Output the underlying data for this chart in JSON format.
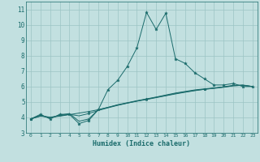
{
  "xlabel": "Humidex (Indice chaleur)",
  "xlim": [
    -0.5,
    23.5
  ],
  "ylim": [
    3.0,
    11.5
  ],
  "yticks": [
    3,
    4,
    5,
    6,
    7,
    8,
    9,
    10,
    11
  ],
  "xticks": [
    0,
    1,
    2,
    3,
    4,
    5,
    6,
    7,
    8,
    9,
    10,
    11,
    12,
    13,
    14,
    15,
    16,
    17,
    18,
    19,
    20,
    21,
    22,
    23
  ],
  "bg_color": "#c2e0e0",
  "grid_color": "#9cc4c4",
  "line_color": "#1a6b6b",
  "line1": [
    3.9,
    4.2,
    3.9,
    4.2,
    4.2,
    3.6,
    3.8,
    4.5,
    5.8,
    6.4,
    7.3,
    8.5,
    10.8,
    9.7,
    10.75,
    7.8,
    7.5,
    6.9,
    6.5,
    6.1,
    6.1,
    6.2,
    6.0,
    6.0
  ],
  "line2": [
    3.9,
    4.15,
    3.95,
    4.15,
    4.25,
    3.75,
    3.9,
    4.5,
    4.65,
    4.82,
    4.95,
    5.08,
    5.2,
    5.32,
    5.45,
    5.58,
    5.68,
    5.78,
    5.85,
    5.9,
    5.98,
    6.08,
    6.1,
    6.0
  ],
  "line3": [
    3.9,
    4.1,
    4.0,
    4.1,
    4.2,
    4.1,
    4.25,
    4.45,
    4.62,
    4.78,
    4.92,
    5.05,
    5.16,
    5.28,
    5.4,
    5.52,
    5.63,
    5.73,
    5.82,
    5.9,
    5.97,
    6.05,
    6.08,
    6.0
  ],
  "line4": [
    3.9,
    4.08,
    4.02,
    4.08,
    4.18,
    4.28,
    4.38,
    4.5,
    4.65,
    4.8,
    4.93,
    5.06,
    5.18,
    5.3,
    5.42,
    5.55,
    5.65,
    5.75,
    5.82,
    5.88,
    5.95,
    6.05,
    6.08,
    6.0
  ]
}
